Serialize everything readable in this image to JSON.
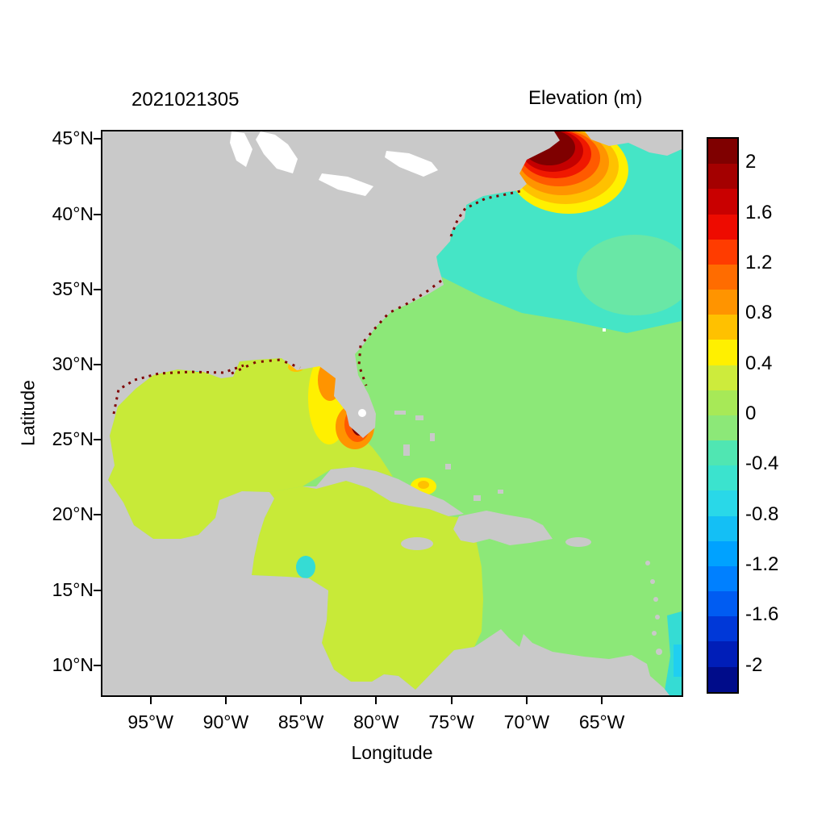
{
  "header": {
    "timestamp_title": "2021021305",
    "colorbar_title": "Elevation (m)"
  },
  "axes": {
    "xlabel": "Longitude",
    "ylabel": "Latitude"
  },
  "chart_data": {
    "type": "heatmap",
    "title": "2021021305",
    "colorbar_title": "Elevation (m)",
    "xlabel": "Longitude",
    "ylabel": "Latitude",
    "lon_range_degW": [
      98.2,
      59.7
    ],
    "lat_range_degN": [
      45.5,
      8.0
    ],
    "x_ticks": [
      {
        "deg": 95,
        "label": "95°W"
      },
      {
        "deg": 90,
        "label": "90°W"
      },
      {
        "deg": 85,
        "label": "85°W"
      },
      {
        "deg": 80,
        "label": "80°W"
      },
      {
        "deg": 75,
        "label": "75°W"
      },
      {
        "deg": 70,
        "label": "70°W"
      },
      {
        "deg": 65,
        "label": "65°W"
      }
    ],
    "y_ticks": [
      {
        "deg": 45,
        "label": "45°N"
      },
      {
        "deg": 40,
        "label": "40°N"
      },
      {
        "deg": 35,
        "label": "35°N"
      },
      {
        "deg": 30,
        "label": "30°N"
      },
      {
        "deg": 25,
        "label": "25°N"
      },
      {
        "deg": 20,
        "label": "20°N"
      },
      {
        "deg": 15,
        "label": "15°N"
      },
      {
        "deg": 10,
        "label": "10°N"
      }
    ],
    "colorbar": {
      "min": -2,
      "max": 2,
      "band_step": 0.2,
      "tick_labels": [
        "2",
        "1.6",
        "1.2",
        "0.8",
        "0.4",
        "0",
        "-0.4",
        "-0.8",
        "-1.2",
        "-1.6",
        "-2"
      ],
      "colors_top_to_bottom": [
        "#7F0000",
        "#A40000",
        "#C90000",
        "#EE0B00",
        "#FF3C00",
        "#FF6C00",
        "#FF9400",
        "#FFC100",
        "#FFF000",
        "#CDEB3C",
        "#A7E957",
        "#8CE878",
        "#50E6B2",
        "#3BE3CE",
        "#29D8E8",
        "#14BFF5",
        "#00A2FF",
        "#0080FF",
        "#005CF2",
        "#0038D8",
        "#001EB8",
        "#000C8A"
      ]
    },
    "regions": [
      {
        "name": "Open Atlantic",
        "approx_elevation_m": 0.0
      },
      {
        "name": "Northeast Atlantic (north of Gulf Stream)",
        "approx_elevation_m": -0.3
      },
      {
        "name": "Gulf of Mexico",
        "approx_elevation_m": 0.3
      },
      {
        "name": "Western Caribbean Sea",
        "approx_elevation_m": 0.25
      },
      {
        "name": "Bay of Fundy / Gulf of Maine maximum",
        "approx_elevation_m": 2.2
      },
      {
        "name": "Southwest Florida coastal maximum",
        "approx_elevation_m": 2.0
      },
      {
        "name": "West Florida shelf",
        "approx_elevation_m": 0.7
      },
      {
        "name": "Northern Gulf coast patches",
        "approx_elevation_m": 0.8
      },
      {
        "name": "Gulf of Guacanayabo (south Cuba)",
        "approx_elevation_m": 0.5
      },
      {
        "name": "Maracaibo / Venezuela coast spot",
        "approx_elevation_m": 0.5
      },
      {
        "name": "Honduras coast patch",
        "approx_elevation_m": -0.5
      },
      {
        "name": "Orinoco / right-edge strip",
        "approx_elevation_m": -0.6
      },
      {
        "name": "Land (no data)",
        "approx_elevation_m": null
      }
    ]
  },
  "colors": {
    "background": "#FFFFFF",
    "land": "#C9C9C9",
    "lake": "#FFFFFF",
    "atlantic": "#8CE878",
    "northeast": "#45E5C6",
    "transition": "#69E7A6",
    "gulf": "#C8EA38",
    "yellow": "#FFF000",
    "gold": "#FFC100",
    "orange": "#FF9400",
    "orange_red": "#FF5A00",
    "red": "#F01800",
    "firebrick": "#C40000",
    "maroon": "#7F0000",
    "cyan": "#20CFF0",
    "turquoise": "#35DCD4",
    "frame": "#000000"
  }
}
